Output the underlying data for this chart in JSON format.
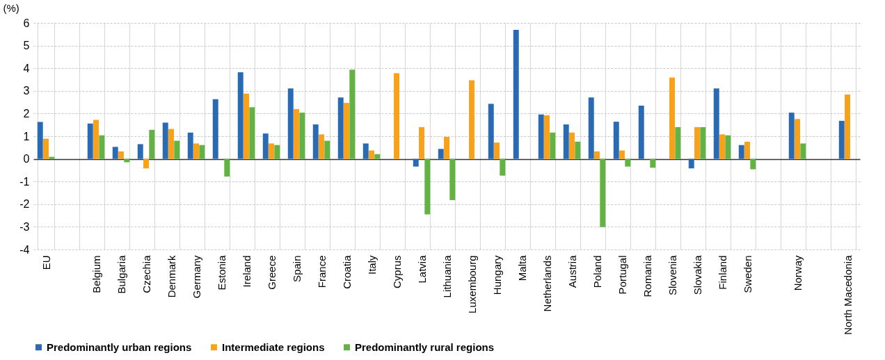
{
  "chart_data": {
    "type": "bar",
    "ylabel": "(%)",
    "categories": [
      "EU",
      null,
      "Belgium",
      "Bulgaria",
      "Czechia",
      "Denmark",
      "Germany",
      "Estonia",
      "Ireland",
      "Greece",
      "Spain",
      "France",
      "Croatia",
      "Italy",
      "Cyprus",
      "Latvia",
      "Lithuania",
      "Luxembourg",
      "Hungary",
      "Malta",
      "Netherlands",
      "Austria",
      "Poland",
      "Portugal",
      "Romania",
      "Slovenia",
      "Slovakia",
      "Finland",
      "Sweden",
      null,
      "Norway",
      null,
      "North Macedonia"
    ],
    "series": [
      {
        "name": "Predominantly urban regions",
        "color": "#2a6ab3",
        "values": [
          1.63,
          null,
          1.56,
          0.53,
          0.65,
          1.6,
          1.16,
          2.63,
          3.82,
          1.12,
          3.11,
          1.52,
          2.71,
          0.68,
          null,
          -0.34,
          0.44,
          null,
          2.43,
          5.69,
          1.96,
          1.52,
          2.71,
          1.64,
          2.35,
          null,
          -0.42,
          3.11,
          0.61,
          null,
          2.04,
          null,
          1.68
        ]
      },
      {
        "name": "Intermediate regions",
        "color": "#f8a21c",
        "values": [
          0.89,
          null,
          1.72,
          0.33,
          -0.42,
          1.32,
          0.68,
          null,
          2.88,
          0.68,
          2.2,
          1.08,
          2.47,
          0.37,
          3.78,
          1.4,
          0.97,
          3.47,
          0.72,
          null,
          1.92,
          1.16,
          0.33,
          0.37,
          null,
          3.59,
          1.4,
          1.08,
          0.76,
          null,
          1.76,
          null,
          2.84
        ]
      },
      {
        "name": "Predominantly rural regions",
        "color": "#63b344",
        "values": [
          0.09,
          null,
          1.04,
          -0.15,
          1.28,
          0.8,
          0.61,
          -0.78,
          2.28,
          0.61,
          2.04,
          0.8,
          3.94,
          0.21,
          null,
          -2.45,
          -1.82,
          null,
          -0.74,
          null,
          1.16,
          0.76,
          -3.01,
          -0.34,
          -0.39,
          1.4,
          1.4,
          1.04,
          -0.46,
          null,
          0.68,
          null,
          null
        ]
      }
    ],
    "ylim": [
      -4,
      6
    ],
    "yticks": [
      -4,
      -3,
      -2,
      -1,
      0,
      1,
      2,
      3,
      4,
      5,
      6
    ],
    "grid": true,
    "legend": "bottom"
  }
}
